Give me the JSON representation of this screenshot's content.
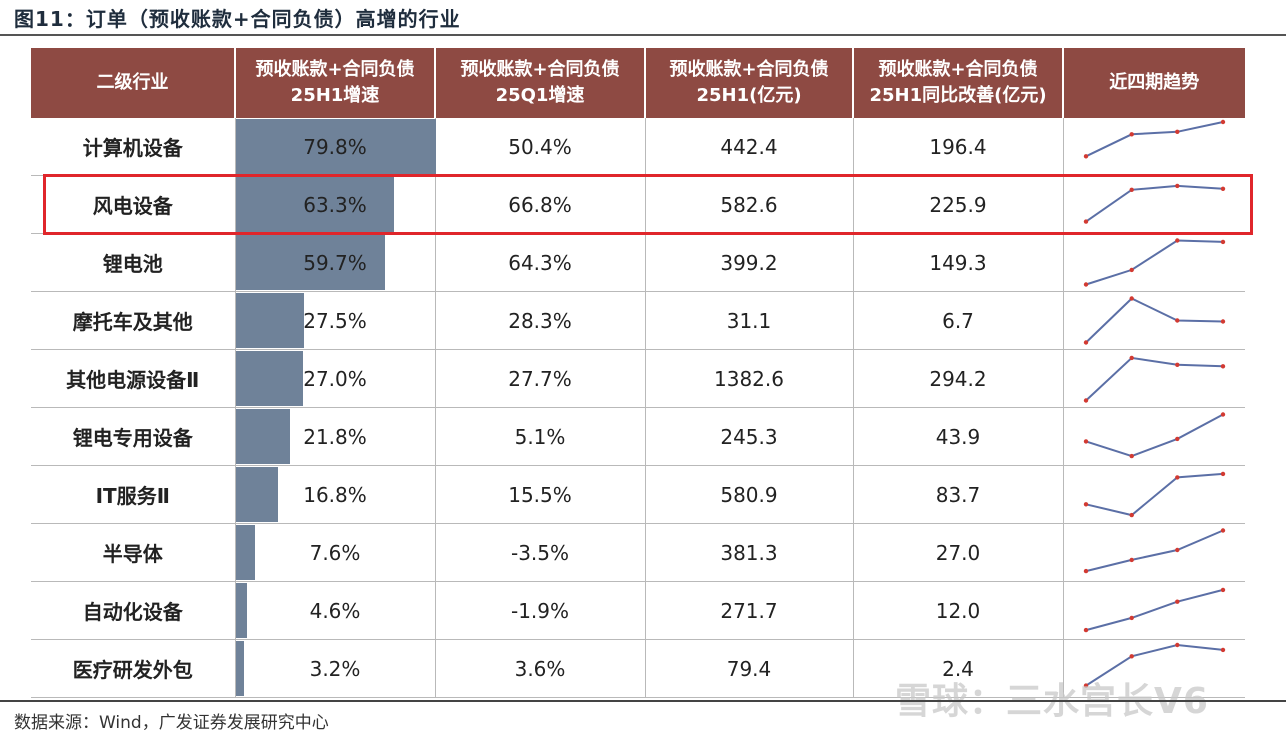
{
  "title": "图11：订单（预收账款+合同负债）高增的行业",
  "source": "数据来源：Wind，广发证券发展研究中心",
  "watermark": "雪球：三水宫长V6",
  "colors": {
    "header_bg": "#8e4a43",
    "bar": "#6f8299",
    "highlight_box": "#e0262b",
    "sparkline_line": "#5b6fa6",
    "sparkline_dot": "#d23a32"
  },
  "highlighted_row": "风电设备",
  "chart_data": {
    "type": "table",
    "columns": [
      "二级行业",
      "预收账款+合同负债\n25H1增速",
      "预收账款+合同负债\n25Q1增速",
      "预收账款+合同负债\n25H1(亿元)",
      "预收账款+合同负债\n25H1同比改善(亿元)",
      "近四期趋势"
    ],
    "rows": [
      {
        "industry": "计算机设备",
        "h1_growth": "79.8%",
        "h1_growth_value": 79.8,
        "q1_growth": "50.4%",
        "h1_amount": "442.4",
        "yoy_improve": "196.4",
        "trend": [
          0.3,
          0.75,
          0.8,
          1.0
        ]
      },
      {
        "industry": "风电设备",
        "h1_growth": "63.3%",
        "h1_growth_value": 63.3,
        "q1_growth": "66.8%",
        "h1_amount": "582.6",
        "yoy_improve": "225.9",
        "trend": [
          0.15,
          0.8,
          0.88,
          0.82
        ]
      },
      {
        "industry": "锂电池",
        "h1_growth": "59.7%",
        "h1_growth_value": 59.7,
        "q1_growth": "64.3%",
        "h1_amount": "399.2",
        "yoy_improve": "149.3",
        "trend": [
          0.05,
          0.35,
          0.95,
          0.92
        ]
      },
      {
        "industry": "摩托车及其他",
        "h1_growth": "27.5%",
        "h1_growth_value": 27.5,
        "q1_growth": "28.3%",
        "h1_amount": "31.1",
        "yoy_improve": "6.7",
        "trend": [
          0.05,
          0.95,
          0.5,
          0.48
        ]
      },
      {
        "industry": "其他电源设备Ⅱ",
        "h1_growth": "27.0%",
        "h1_growth_value": 27.0,
        "q1_growth": "27.7%",
        "h1_amount": "1382.6",
        "yoy_improve": "294.2",
        "trend": [
          0.05,
          0.92,
          0.78,
          0.75
        ]
      },
      {
        "industry": "锂电专用设备",
        "h1_growth": "21.8%",
        "h1_growth_value": 21.8,
        "q1_growth": "5.1%",
        "h1_amount": "245.3",
        "yoy_improve": "43.9",
        "trend": [
          0.4,
          0.1,
          0.45,
          0.95
        ]
      },
      {
        "industry": "IT服务Ⅱ",
        "h1_growth": "16.8%",
        "h1_growth_value": 16.8,
        "q1_growth": "15.5%",
        "h1_amount": "580.9",
        "yoy_improve": "83.7",
        "trend": [
          0.3,
          0.08,
          0.85,
          0.92
        ]
      },
      {
        "industry": "半导体",
        "h1_growth": "7.6%",
        "h1_growth_value": 7.6,
        "q1_growth": "-3.5%",
        "h1_amount": "381.3",
        "yoy_improve": "27.0",
        "trend": [
          0.12,
          0.35,
          0.55,
          0.95
        ]
      },
      {
        "industry": "自动化设备",
        "h1_growth": "4.6%",
        "h1_growth_value": 4.6,
        "q1_growth": "-1.9%",
        "h1_amount": "271.7",
        "yoy_improve": "12.0",
        "trend": [
          0.1,
          0.35,
          0.68,
          0.92
        ]
      },
      {
        "industry": "医疗研发外包",
        "h1_growth": "3.2%",
        "h1_growth_value": 3.2,
        "q1_growth": "3.6%",
        "h1_amount": "79.4",
        "yoy_improve": "2.4",
        "trend": [
          0.15,
          0.75,
          0.98,
          0.88
        ]
      }
    ],
    "bar_max": 79.8
  }
}
